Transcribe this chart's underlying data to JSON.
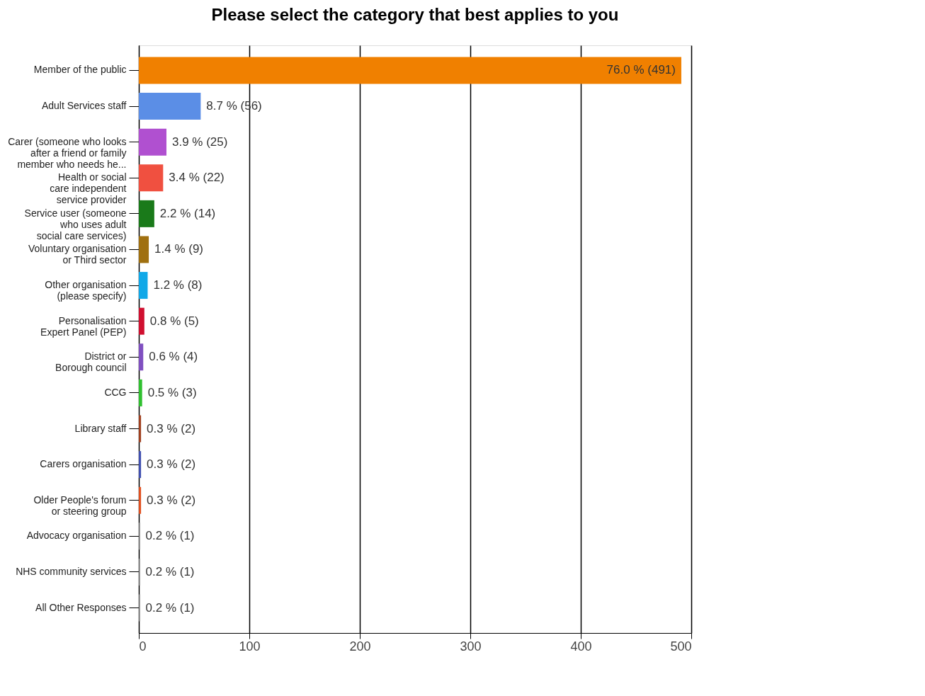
{
  "chart_data": {
    "type": "bar",
    "orientation": "horizontal",
    "title": "Please select the category that best applies to you",
    "categories": [
      "Member of the public",
      "Adult Services staff",
      "Carer (someone who looks\nafter a friend or family\nmember who needs he...",
      "Health or social\ncare independent\nservice provider",
      "Service user (someone\nwho uses adult\nsocial care services)",
      "Voluntary organisation\nor Third sector",
      "Other organisation\n(please specify)",
      "Personalisation\nExpert Panel (PEP)",
      "District or\nBorough council",
      "CCG",
      "Library staff",
      "Carers organisation",
      "Older People's forum\nor steering group",
      "Advocacy organisation",
      "NHS community services",
      "All Other Responses"
    ],
    "values": [
      491,
      56,
      25,
      22,
      14,
      9,
      8,
      5,
      4,
      3,
      2,
      2,
      2,
      1,
      1,
      1
    ],
    "colors": [
      "#f08000",
      "#5b8ee6",
      "#b050d0",
      "#f05040",
      "#1a7a1a",
      "#a07010",
      "#10a8e8",
      "#d01030",
      "#8050c0",
      "#30c030",
      "#a04020",
      "#4050b0",
      "#e05020",
      "#808080",
      "#808080",
      "#808080"
    ],
    "value_labels": [
      "76.0 % (491)",
      "8.7 % (56)",
      "3.9 % (25)",
      "3.4 % (22)",
      "2.2 % (14)",
      "1.4 % (9)",
      "1.2 % (8)",
      "0.8 % (5)",
      "0.6 % (4)",
      "0.5 % (3)",
      "0.3 % (2)",
      "0.3 % (2)",
      "0.3 % (2)",
      "0.2 % (1)",
      "0.2 % (1)",
      "0.2 % (1)"
    ],
    "xlim": [
      0,
      500
    ],
    "xticks": [
      0,
      100,
      200,
      300,
      400,
      500
    ],
    "grid": "x"
  }
}
